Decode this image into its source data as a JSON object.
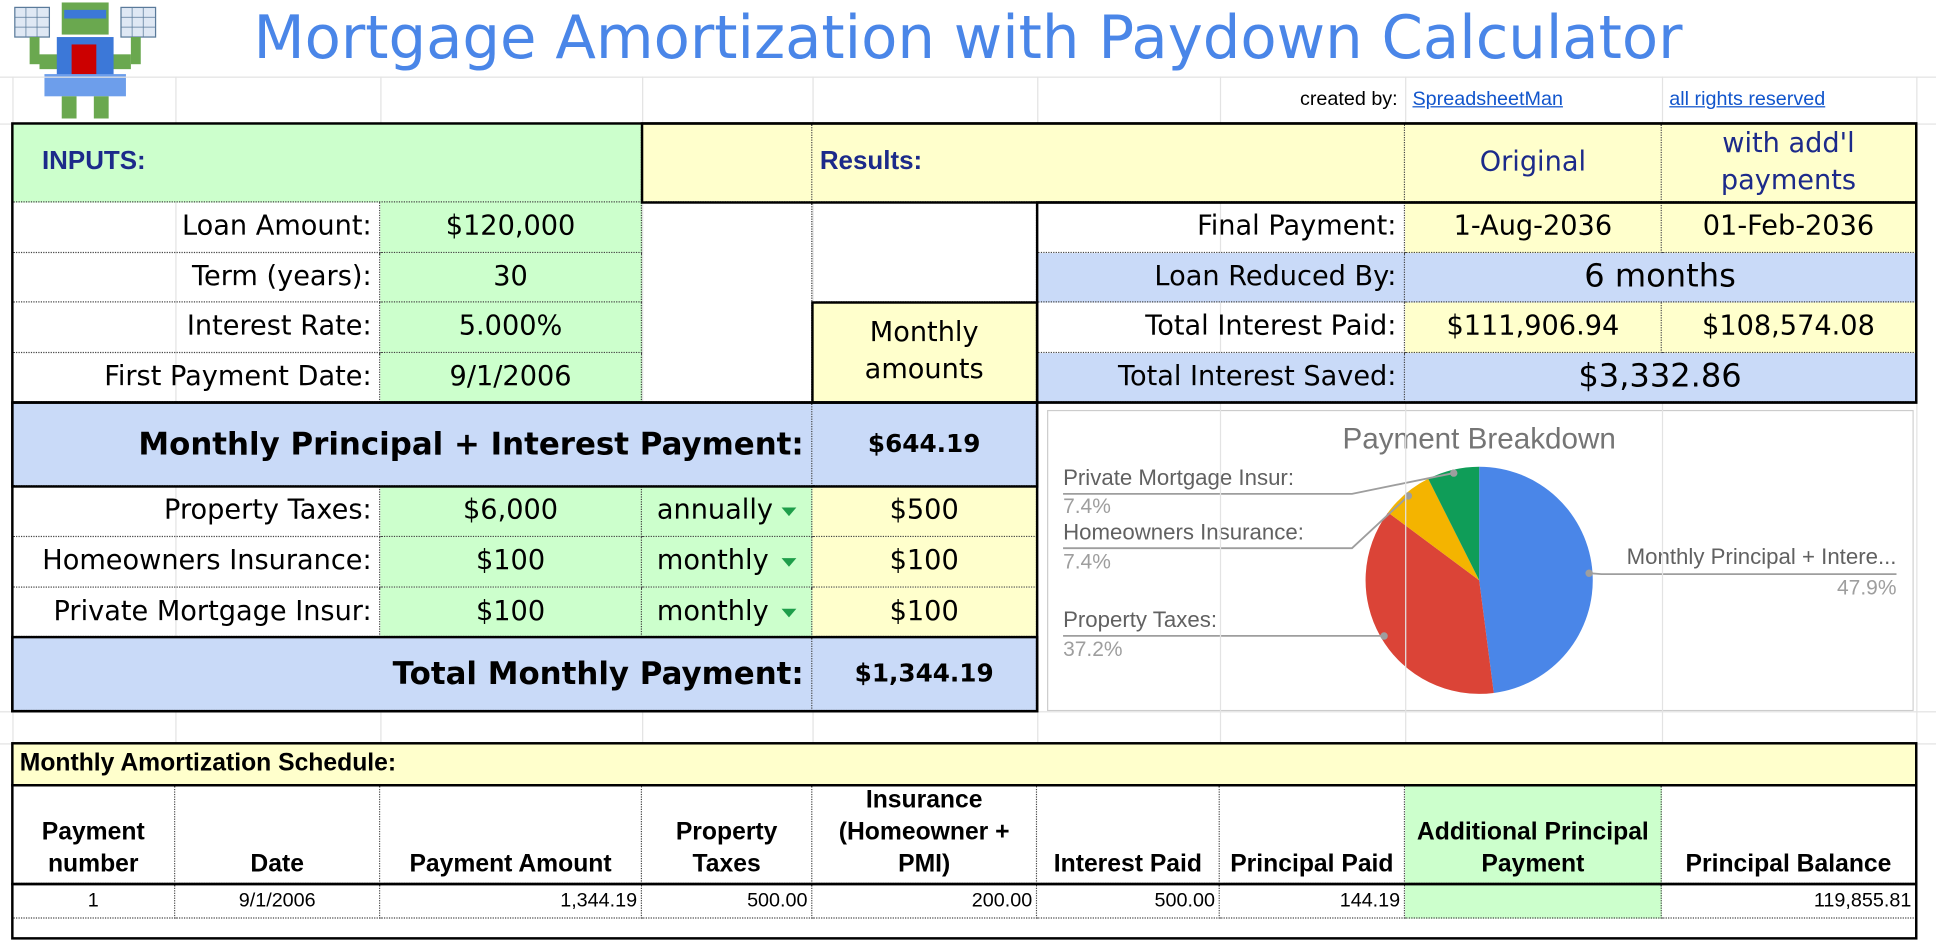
{
  "header": {
    "title": "Mortgage Amortization with Paydown Calculator",
    "created_by_label": "created by:",
    "author": "SpreadsheetMan",
    "rights": "all rights reserved"
  },
  "inputs": {
    "heading": "INPUTS:",
    "rows": [
      {
        "label": "Loan Amount:",
        "value": "$120,000"
      },
      {
        "label": "Term (years):",
        "value": "30"
      },
      {
        "label": "Interest Rate:",
        "value": "5.000%"
      },
      {
        "label": "First Payment Date:",
        "value": "9/1/2006"
      }
    ]
  },
  "results": {
    "heading": "Results:",
    "columns": [
      "Original",
      "with add'l payments"
    ],
    "final_payment": {
      "label": "Final Payment:",
      "original": "1-Aug-2036",
      "additional": "01-Feb-2036"
    },
    "loan_reduced": {
      "label": "Loan Reduced By:",
      "value": "6 months"
    },
    "total_interest": {
      "label": "Total Interest Paid:",
      "original": "$111,906.94",
      "additional": "$108,574.08"
    },
    "interest_saved": {
      "label": "Total Interest Saved:",
      "value": "$3,332.86"
    }
  },
  "monthly_amounts_label": "Monthly amounts",
  "payment": {
    "label": "Monthly Principal + Interest Payment:",
    "value": "$644.19"
  },
  "expenses": [
    {
      "label": "Property Taxes:",
      "amount": "$6,000",
      "frequency": "annually",
      "monthly": "$500"
    },
    {
      "label": "Homeowners Insurance:",
      "amount": "$100",
      "frequency": "monthly",
      "monthly": "$100"
    },
    {
      "label": "Private Mortgage Insur:",
      "amount": "$100",
      "frequency": "monthly",
      "monthly": "$100"
    }
  ],
  "total": {
    "label": "Total Monthly Payment:",
    "value": "$1,344.19"
  },
  "chart_data": {
    "type": "pie",
    "title": "Payment Breakdown",
    "categories": [
      "Monthly Principal + Intere...",
      "Property Taxes:",
      "Homeowners Insurance:",
      "Private Mortgage Insur:"
    ],
    "values": [
      47.9,
      37.2,
      7.4,
      7.4
    ],
    "value_labels": [
      "47.9%",
      "37.2%",
      "7.4%",
      "7.4%"
    ],
    "colors": [
      "#4a86e8",
      "#db4437",
      "#f4b400",
      "#0f9d58"
    ]
  },
  "schedule": {
    "title": "Monthly Amortization Schedule:",
    "columns": [
      "Payment number",
      "Date",
      "Payment Amount",
      "Property Taxes",
      "Insurance (Homeowner + PMI)",
      "Interest Paid",
      "Principal Paid",
      "Additional Principal Payment",
      "Principal Balance"
    ],
    "rows": [
      {
        "number": "1",
        "date": "9/1/2006",
        "payment": "1,344.19",
        "taxes": "500.00",
        "insurance": "200.00",
        "interest": "500.00",
        "principal": "144.19",
        "balance": "119,855.81"
      }
    ]
  }
}
